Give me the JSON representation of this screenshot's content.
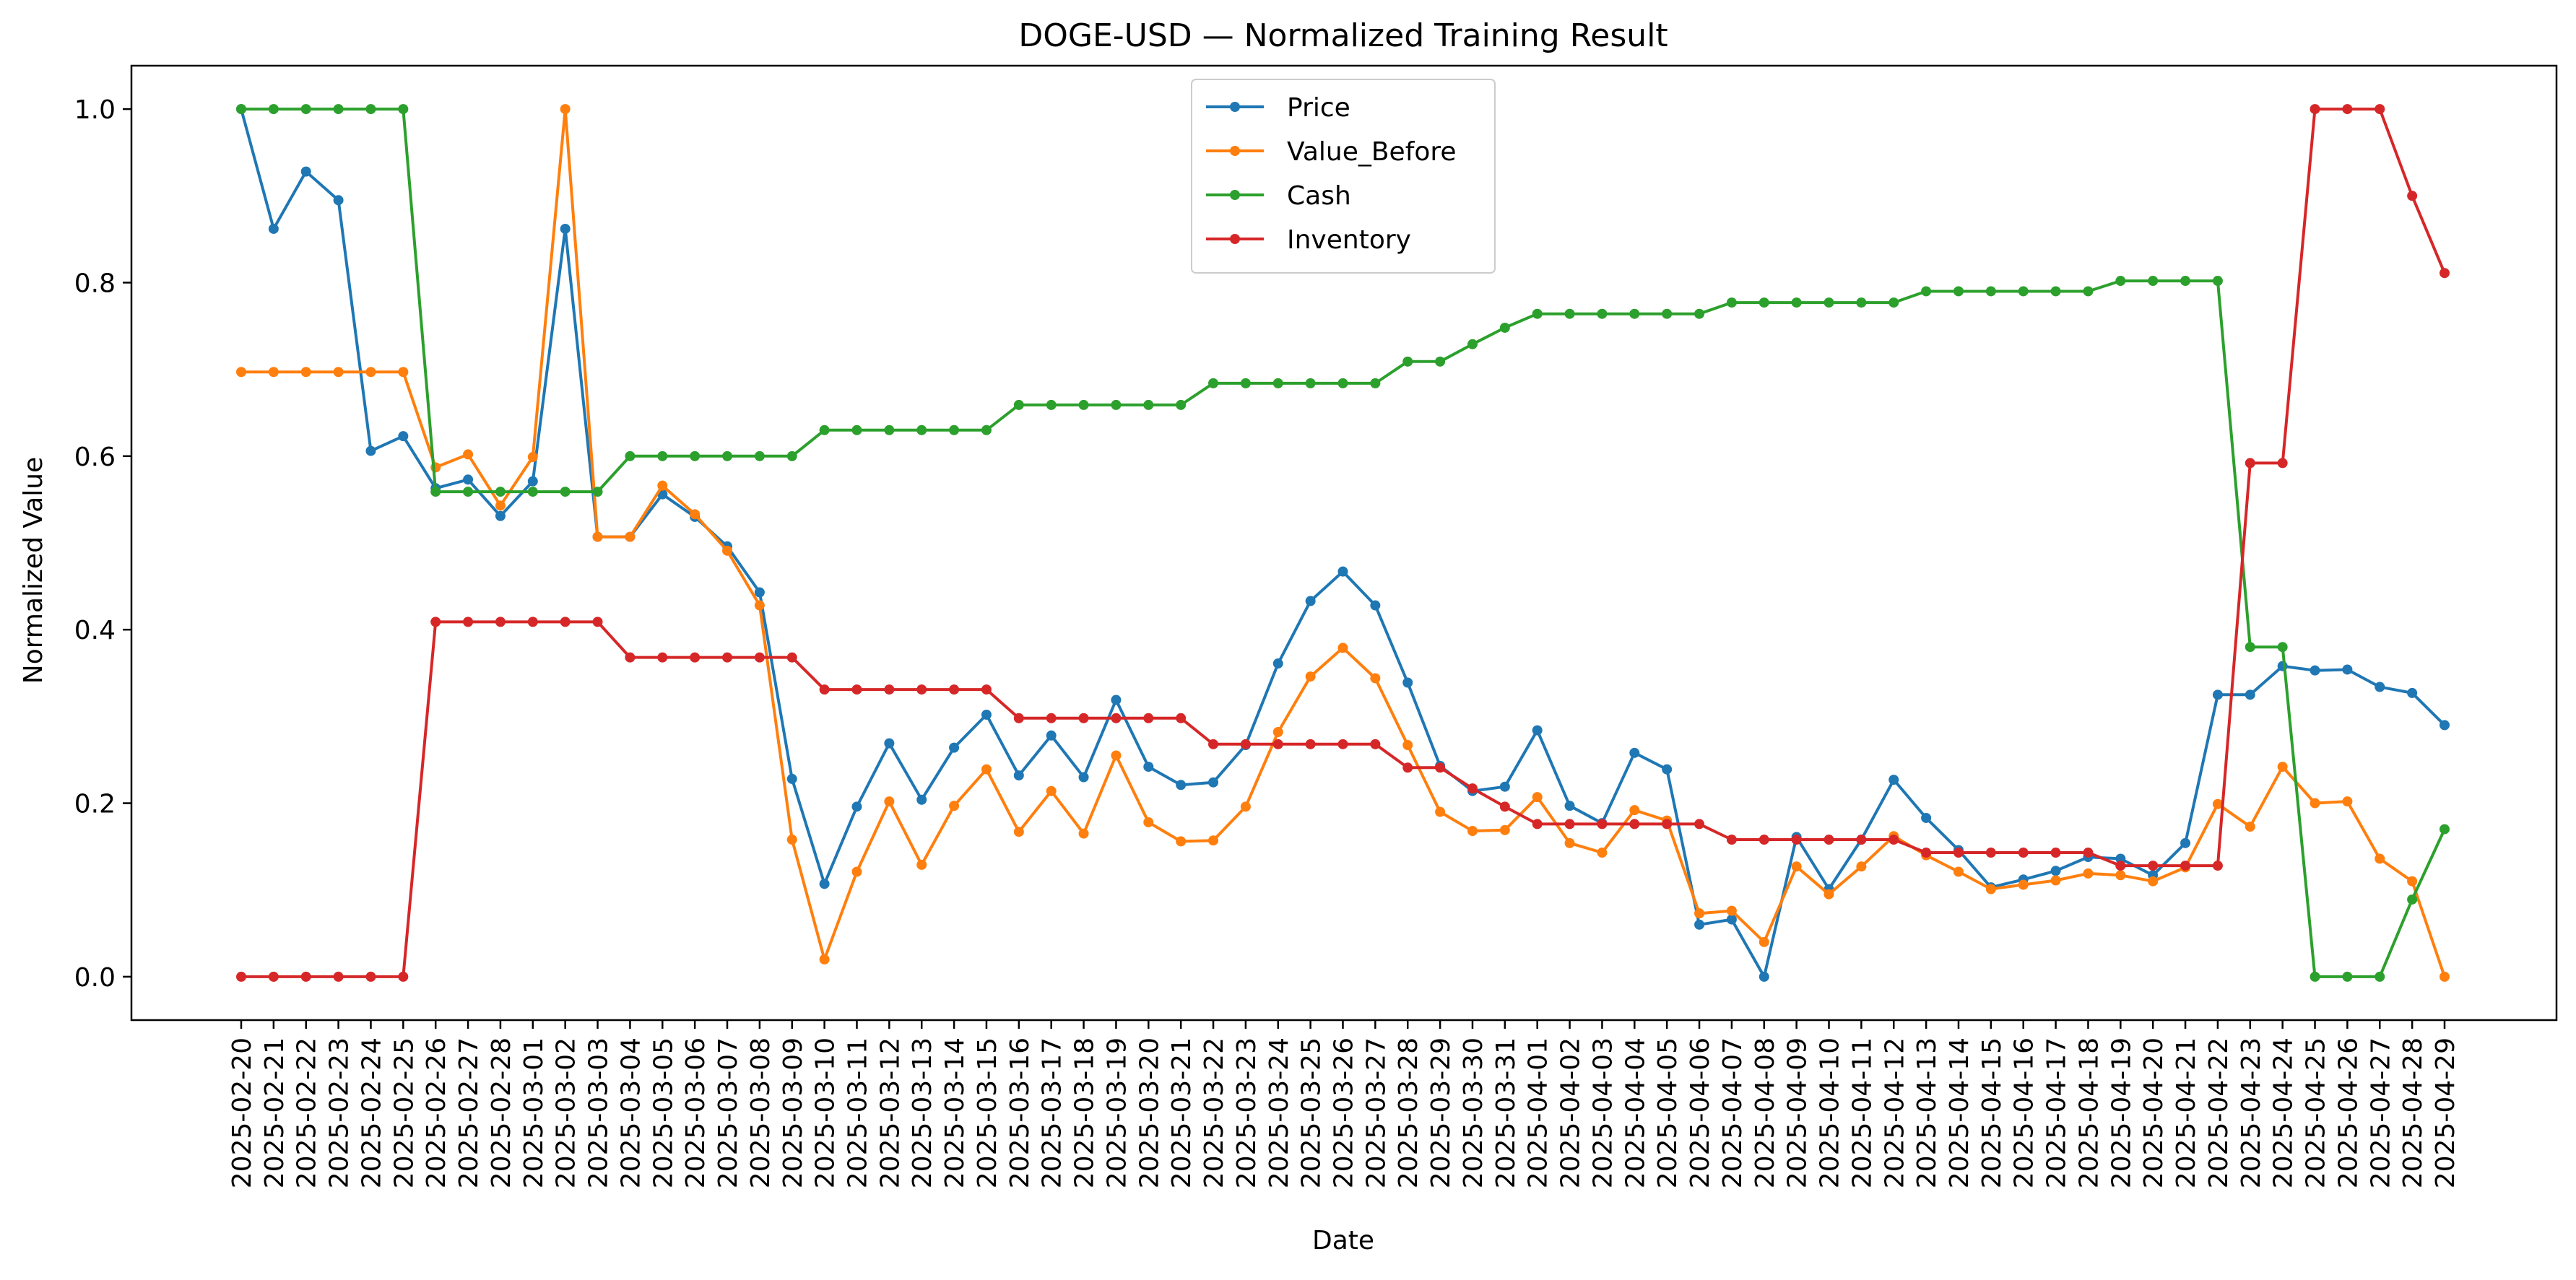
{
  "chart_data": {
    "type": "line",
    "title": "DOGE-USD — Normalized Training Result",
    "xlabel": "Date",
    "ylabel": "Normalized Value",
    "ylim": [
      -0.05,
      1.05
    ],
    "yticks": [
      "0.0",
      "0.2",
      "0.4",
      "0.6",
      "0.8",
      "1.0"
    ],
    "grid": false,
    "legend_position": "upper center",
    "x": [
      "2025-02-20",
      "2025-02-21",
      "2025-02-22",
      "2025-02-23",
      "2025-02-24",
      "2025-02-25",
      "2025-02-26",
      "2025-02-27",
      "2025-02-28",
      "2025-03-01",
      "2025-03-02",
      "2025-03-03",
      "2025-03-04",
      "2025-03-05",
      "2025-03-06",
      "2025-03-07",
      "2025-03-08",
      "2025-03-09",
      "2025-03-10",
      "2025-03-11",
      "2025-03-12",
      "2025-03-13",
      "2025-03-14",
      "2025-03-15",
      "2025-03-16",
      "2025-03-17",
      "2025-03-18",
      "2025-03-19",
      "2025-03-20",
      "2025-03-21",
      "2025-03-22",
      "2025-03-23",
      "2025-03-24",
      "2025-03-25",
      "2025-03-26",
      "2025-03-27",
      "2025-03-28",
      "2025-03-29",
      "2025-03-30",
      "2025-03-31",
      "2025-04-01",
      "2025-04-02",
      "2025-04-03",
      "2025-04-04",
      "2025-04-05",
      "2025-04-06",
      "2025-04-07",
      "2025-04-08",
      "2025-04-09",
      "2025-04-10",
      "2025-04-11",
      "2025-04-12",
      "2025-04-13",
      "2025-04-14",
      "2025-04-15",
      "2025-04-16",
      "2025-04-17",
      "2025-04-18",
      "2025-04-19",
      "2025-04-20",
      "2025-04-21",
      "2025-04-22",
      "2025-04-23",
      "2025-04-24",
      "2025-04-25",
      "2025-04-26",
      "2025-04-27",
      "2025-04-28",
      "2025-04-29"
    ],
    "series": [
      {
        "name": "Price",
        "color": "#1f77b4",
        "values": [
          1.0,
          0.862,
          0.928,
          0.895,
          0.606,
          0.623,
          0.563,
          0.573,
          0.531,
          0.571,
          0.862,
          0.507,
          0.507,
          0.556,
          0.53,
          0.496,
          0.443,
          0.228,
          0.107,
          0.196,
          0.269,
          0.204,
          0.264,
          0.302,
          0.232,
          0.278,
          0.23,
          0.319,
          0.242,
          0.221,
          0.224,
          0.267,
          0.361,
          0.433,
          0.467,
          0.428,
          0.339,
          0.243,
          0.214,
          0.219,
          0.284,
          0.197,
          0.177,
          0.258,
          0.239,
          0.06,
          0.066,
          0.0,
          0.161,
          0.101,
          0.158,
          0.227,
          0.183,
          0.146,
          0.103,
          0.112,
          0.122,
          0.138,
          0.136,
          0.117,
          0.154,
          0.325,
          0.325,
          0.358,
          0.353,
          0.354,
          0.334,
          0.327,
          0.29
        ]
      },
      {
        "name": "Value_Before",
        "color": "#ff7f0e",
        "values": [
          0.697,
          0.697,
          0.697,
          0.697,
          0.697,
          0.697,
          0.587,
          0.602,
          0.543,
          0.599,
          1.0,
          0.507,
          0.507,
          0.566,
          0.533,
          0.491,
          0.428,
          0.158,
          0.02,
          0.121,
          0.202,
          0.129,
          0.197,
          0.239,
          0.167,
          0.214,
          0.165,
          0.255,
          0.178,
          0.156,
          0.157,
          0.196,
          0.282,
          0.346,
          0.379,
          0.344,
          0.267,
          0.19,
          0.168,
          0.169,
          0.207,
          0.154,
          0.143,
          0.192,
          0.18,
          0.073,
          0.076,
          0.04,
          0.127,
          0.095,
          0.127,
          0.162,
          0.14,
          0.121,
          0.101,
          0.106,
          0.111,
          0.119,
          0.117,
          0.11,
          0.126,
          0.199,
          0.173,
          0.242,
          0.2,
          0.202,
          0.136,
          0.11,
          0.0
        ]
      },
      {
        "name": "Cash",
        "color": "#2ca02c",
        "values": [
          1.0,
          1.0,
          1.0,
          1.0,
          1.0,
          1.0,
          0.559,
          0.559,
          0.559,
          0.559,
          0.559,
          0.559,
          0.6,
          0.6,
          0.6,
          0.6,
          0.6,
          0.6,
          0.63,
          0.63,
          0.63,
          0.63,
          0.63,
          0.63,
          0.659,
          0.659,
          0.659,
          0.659,
          0.659,
          0.659,
          0.684,
          0.684,
          0.684,
          0.684,
          0.684,
          0.684,
          0.709,
          0.709,
          0.729,
          0.748,
          0.764,
          0.764,
          0.764,
          0.764,
          0.764,
          0.764,
          0.777,
          0.777,
          0.777,
          0.777,
          0.777,
          0.777,
          0.79,
          0.79,
          0.79,
          0.79,
          0.79,
          0.79,
          0.802,
          0.802,
          0.802,
          0.802,
          0.38,
          0.38,
          0.0,
          0.0,
          0.0,
          0.089,
          0.17
        ]
      },
      {
        "name": "Inventory",
        "color": "#d62728",
        "values": [
          0.0,
          0.0,
          0.0,
          0.0,
          0.0,
          0.0,
          0.409,
          0.409,
          0.409,
          0.409,
          0.409,
          0.409,
          0.368,
          0.368,
          0.368,
          0.368,
          0.368,
          0.368,
          0.331,
          0.331,
          0.331,
          0.331,
          0.331,
          0.331,
          0.298,
          0.298,
          0.298,
          0.298,
          0.298,
          0.298,
          0.268,
          0.268,
          0.268,
          0.268,
          0.268,
          0.268,
          0.241,
          0.241,
          0.217,
          0.196,
          0.176,
          0.176,
          0.176,
          0.176,
          0.176,
          0.176,
          0.158,
          0.158,
          0.158,
          0.158,
          0.158,
          0.158,
          0.143,
          0.143,
          0.143,
          0.143,
          0.143,
          0.143,
          0.128,
          0.128,
          0.128,
          0.128,
          0.592,
          0.592,
          1.0,
          1.0,
          1.0,
          0.9,
          0.811
        ]
      }
    ]
  }
}
